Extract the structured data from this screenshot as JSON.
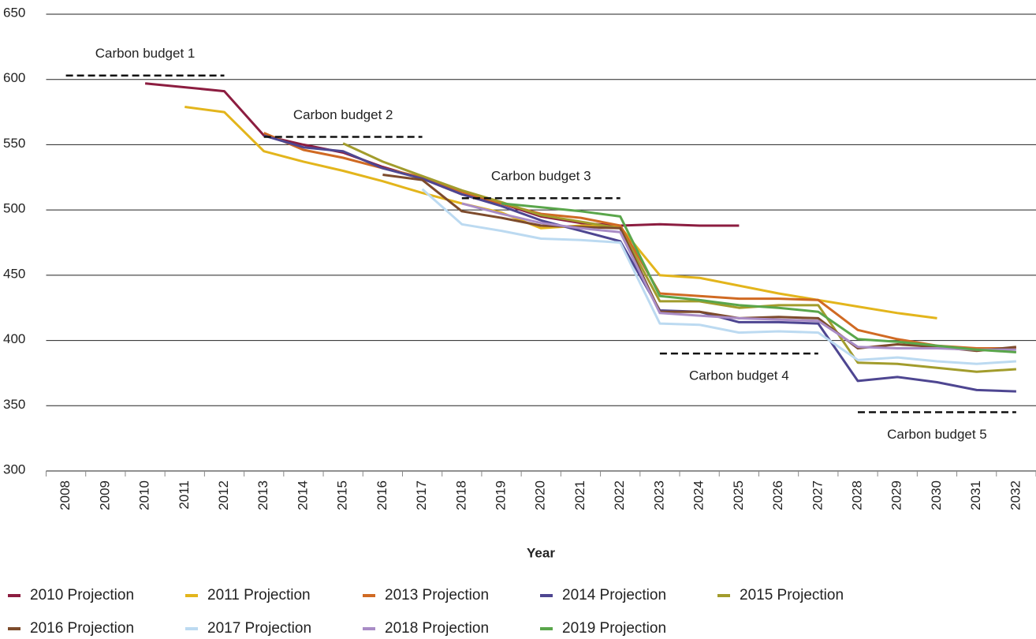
{
  "chart_data": {
    "type": "line",
    "x_label": "Year",
    "categories": [
      "2008",
      "2009",
      "2010",
      "2011",
      "2012",
      "2013",
      "2014",
      "2015",
      "2016",
      "2017",
      "2018",
      "2019",
      "2020",
      "2021",
      "2022",
      "2023",
      "2024",
      "2025",
      "2026",
      "2027",
      "2028",
      "2029",
      "2030",
      "2031",
      "2032"
    ],
    "ylim": [
      300,
      650
    ],
    "yticks": [
      300,
      350,
      400,
      450,
      500,
      550,
      600,
      650
    ],
    "grid": true,
    "legend": "bottom",
    "series": [
      {
        "name": "2010 Projection",
        "color": "#8c1d40",
        "values": [
          null,
          null,
          597,
          594,
          591,
          557,
          550,
          544,
          533,
          524,
          512,
          505,
          495,
          490,
          488,
          489,
          488,
          488,
          null,
          null,
          null,
          null,
          null,
          null,
          null
        ]
      },
      {
        "name": "2011 Projection",
        "color": "#e3b51c",
        "values": [
          null,
          null,
          null,
          579,
          575,
          545,
          537,
          530,
          522,
          513,
          505,
          498,
          486,
          488,
          487,
          450,
          448,
          442,
          436,
          431,
          426,
          421,
          417,
          null,
          null
        ]
      },
      {
        "name": "2013 Projection",
        "color": "#d06a23",
        "values": [
          null,
          null,
          null,
          null,
          null,
          559,
          546,
          540,
          532,
          525,
          514,
          505,
          497,
          494,
          488,
          436,
          434,
          432,
          432,
          431,
          408,
          401,
          396,
          394,
          394
        ]
      },
      {
        "name": "2014 Projection",
        "color": "#4e4691",
        "values": [
          null,
          null,
          null,
          null,
          null,
          557,
          548,
          545,
          532,
          524,
          512,
          503,
          492,
          484,
          476,
          423,
          422,
          414,
          414,
          413,
          369,
          372,
          368,
          362,
          361
        ]
      },
      {
        "name": "2015 Projection",
        "color": "#a29c2c",
        "values": [
          null,
          null,
          null,
          null,
          null,
          null,
          null,
          551,
          537,
          526,
          515,
          506,
          496,
          491,
          486,
          430,
          430,
          425,
          427,
          427,
          383,
          382,
          379,
          376,
          378
        ]
      },
      {
        "name": "2016 Projection",
        "color": "#7d4b2c",
        "values": [
          null,
          null,
          null,
          null,
          null,
          null,
          null,
          null,
          527,
          523,
          499,
          494,
          488,
          487,
          486,
          422,
          422,
          417,
          418,
          417,
          394,
          397,
          395,
          392,
          395
        ]
      },
      {
        "name": "2017 Projection",
        "color": "#bcdaf1",
        "values": [
          null,
          null,
          null,
          null,
          null,
          null,
          null,
          null,
          null,
          516,
          489,
          484,
          478,
          477,
          475,
          413,
          412,
          406,
          407,
          406,
          385,
          387,
          384,
          382,
          384
        ]
      },
      {
        "name": "2018 Projection",
        "color": "#a98cc6",
        "values": [
          null,
          null,
          null,
          null,
          null,
          null,
          null,
          null,
          null,
          null,
          505,
          497,
          490,
          486,
          483,
          421,
          419,
          417,
          416,
          415,
          395,
          394,
          394,
          393,
          393
        ]
      },
      {
        "name": "2019 Projection",
        "color": "#5aa64b",
        "values": [
          null,
          null,
          null,
          null,
          null,
          null,
          null,
          null,
          null,
          null,
          null,
          505,
          502,
          499,
          495,
          434,
          431,
          427,
          425,
          422,
          401,
          399,
          396,
          393,
          391
        ]
      }
    ],
    "annotations": [
      {
        "label": "Carbon budget 1",
        "value": 603,
        "from": "2008",
        "to": "2012"
      },
      {
        "label": "Carbon budget 2",
        "value": 556,
        "from": "2013",
        "to": "2017"
      },
      {
        "label": "Carbon budget 3",
        "value": 509,
        "from": "2018",
        "to": "2022"
      },
      {
        "label": "Carbon budget 4",
        "value": 390,
        "from": "2023",
        "to": "2027"
      },
      {
        "label": "Carbon budget 5",
        "value": 345,
        "from": "2028",
        "to": "2032"
      }
    ]
  }
}
